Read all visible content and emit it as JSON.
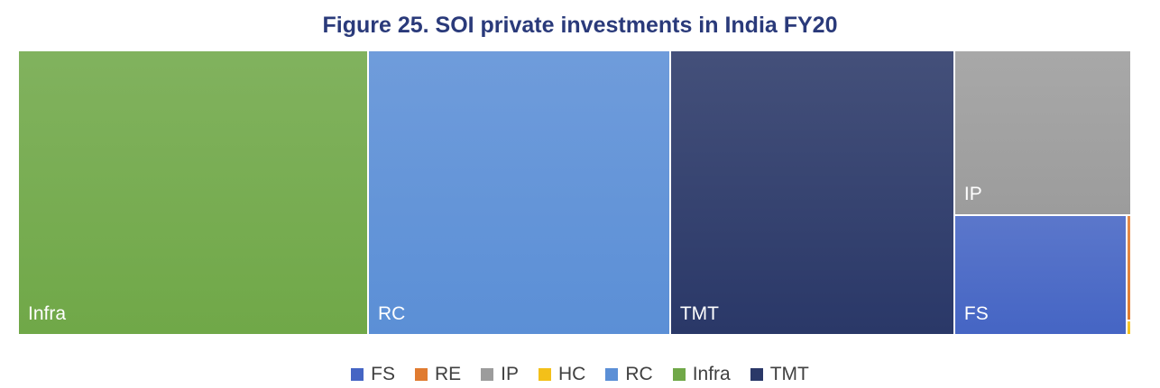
{
  "chart_data": {
    "type": "treemap",
    "title": "Figure 25. SOI private investments in India FY20",
    "series": [
      {
        "name": "Infra",
        "value": 31.4,
        "color": "#70a848"
      },
      {
        "name": "RC",
        "value": 27.1,
        "color": "#5b8fd6"
      },
      {
        "name": "TMT",
        "value": 25.5,
        "color": "#2a3868"
      },
      {
        "name": "IP",
        "value": 9.2,
        "color": "#9c9c9c"
      },
      {
        "name": "FS",
        "value": 6.5,
        "color": "#4565c4"
      },
      {
        "name": "RE",
        "value": 0.15,
        "color": "#e07b30"
      },
      {
        "name": "HC",
        "value": 0.02,
        "color": "#f3c019"
      }
    ],
    "legend": {
      "position": "bottom",
      "items": [
        {
          "label": "FS",
          "color": "#4565c4"
        },
        {
          "label": "RE",
          "color": "#e07b30"
        },
        {
          "label": "IP",
          "color": "#9c9c9c"
        },
        {
          "label": "HC",
          "color": "#f3c019"
        },
        {
          "label": "RC",
          "color": "#5b8fd6"
        },
        {
          "label": "Infra",
          "color": "#70a848"
        },
        {
          "label": "TMT",
          "color": "#2a3868"
        }
      ]
    }
  }
}
